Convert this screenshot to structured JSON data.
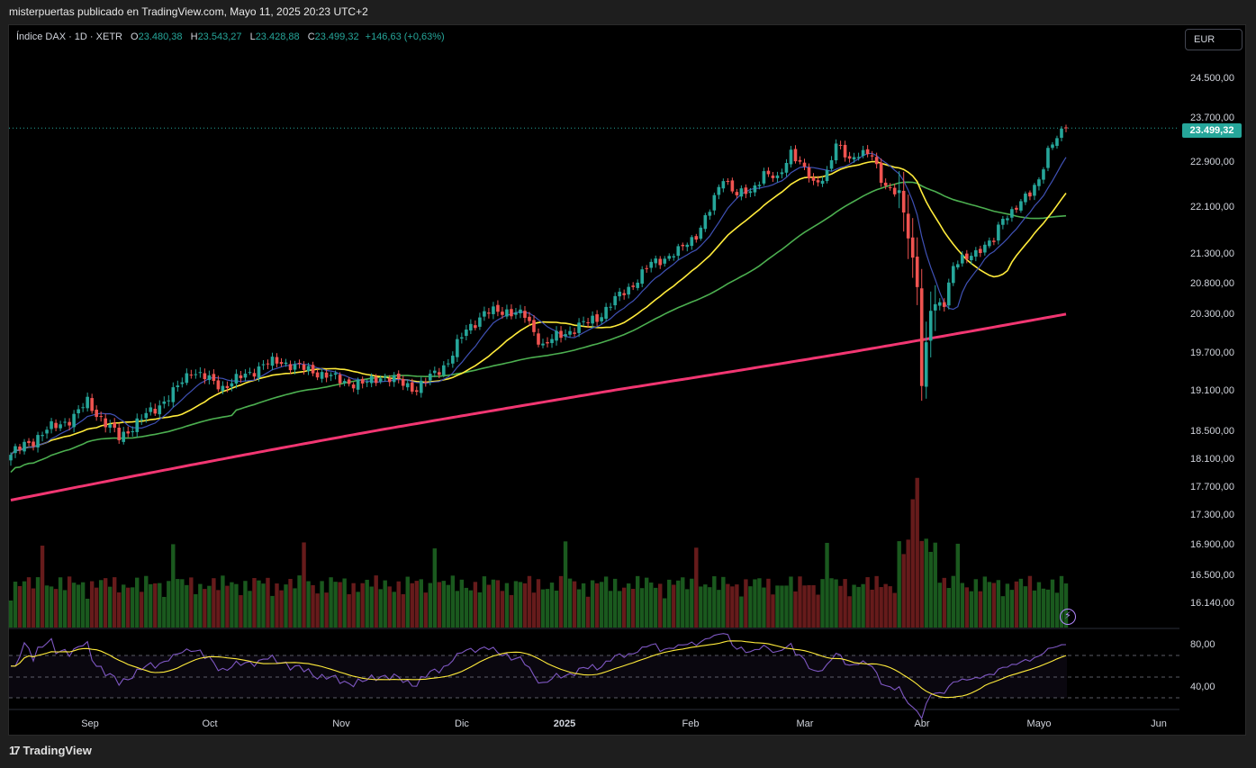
{
  "caption": "misterpuertas publicado en TradingView.com, Mayo 11, 2025 20:23 UTC+2",
  "legend": {
    "symbol": "Índice DAX · 1D · XETR",
    "o_label": "O",
    "o": "23.480,38",
    "h_label": "H",
    "h": "23.543,27",
    "l_label": "L",
    "l": "23.428,88",
    "c_label": "C",
    "c": "23.499,32",
    "change": "+146,63 (+0,63%)"
  },
  "currency": "EUR",
  "footer": {
    "logo": "TradingView"
  },
  "colors": {
    "up": "#26a69a",
    "down": "#ef5350",
    "ma_fast": "#3f51b5",
    "ma_mid": "#ffeb3b",
    "ma_slow": "#4caf50",
    "ma_long": "#f23672",
    "rsi": "#7e57c2"
  },
  "chart_data": {
    "type": "candlestick",
    "x_axis": {
      "ticks": [
        "Sep",
        "Oct",
        "Nov",
        "Dic",
        "2025",
        "Feb",
        "Mar",
        "Abr",
        "Mayo",
        "Jun"
      ]
    },
    "price_axis": {
      "labels": [
        "24.500,00",
        "23.700,00",
        "22.900,00",
        "22.100,00",
        "21.300,00",
        "20.800,00",
        "20.300,00",
        "19.700,00",
        "19.100,00",
        "18.500,00",
        "18.100,00",
        "17.700,00",
        "17.300,00",
        "16.900,00",
        "16.500,00",
        "16.140,00"
      ],
      "last_price": "23.499,32"
    },
    "rsi_axis": {
      "labels": [
        "80,00",
        "40,00"
      ]
    },
    "close_path": [
      [
        0,
        18150
      ],
      [
        8,
        18500
      ],
      [
        14,
        18700
      ],
      [
        17,
        18920
      ],
      [
        21,
        18600
      ],
      [
        24,
        18400
      ],
      [
        30,
        18720
      ],
      [
        36,
        19050
      ],
      [
        40,
        19420
      ],
      [
        44,
        19250
      ],
      [
        47,
        19150
      ],
      [
        52,
        19330
      ],
      [
        56,
        19500
      ],
      [
        60,
        19550
      ],
      [
        64,
        19450
      ],
      [
        68,
        19380
      ],
      [
        73,
        19250
      ],
      [
        78,
        19180
      ],
      [
        82,
        19320
      ],
      [
        86,
        19230
      ],
      [
        90,
        19120
      ],
      [
        93,
        19300
      ],
      [
        97,
        19550
      ],
      [
        101,
        20050
      ],
      [
        105,
        20300
      ],
      [
        110,
        20350
      ],
      [
        114,
        20250
      ],
      [
        118,
        19800
      ],
      [
        121,
        19930
      ],
      [
        126,
        20100
      ],
      [
        130,
        20230
      ],
      [
        134,
        20520
      ],
      [
        138,
        20780
      ],
      [
        142,
        21120
      ],
      [
        148,
        21320
      ],
      [
        152,
        21620
      ],
      [
        155,
        22020
      ],
      [
        158,
        22630
      ],
      [
        161,
        22300
      ],
      [
        164,
        22350
      ],
      [
        167,
        22700
      ],
      [
        170,
        22550
      ],
      [
        173,
        23100
      ],
      [
        175,
        22850
      ],
      [
        178,
        22500
      ],
      [
        181,
        22700
      ],
      [
        183,
        23180
      ],
      [
        186,
        22950
      ],
      [
        188,
        23050
      ],
      [
        191,
        22980
      ],
      [
        193,
        22600
      ],
      [
        195,
        22400
      ],
      [
        197,
        22300
      ],
      [
        199,
        21600
      ],
      [
        201,
        20800
      ],
      [
        202,
        19200
      ],
      [
        204,
        20350
      ],
      [
        207,
        20500
      ],
      [
        209,
        21100
      ],
      [
        212,
        21200
      ],
      [
        215,
        21400
      ],
      [
        218,
        21500
      ],
      [
        220,
        21900
      ],
      [
        223,
        22100
      ],
      [
        226,
        22300
      ],
      [
        228,
        22600
      ],
      [
        230,
        23100
      ],
      [
        232,
        23300
      ],
      [
        234,
        23500
      ]
    ]
  }
}
